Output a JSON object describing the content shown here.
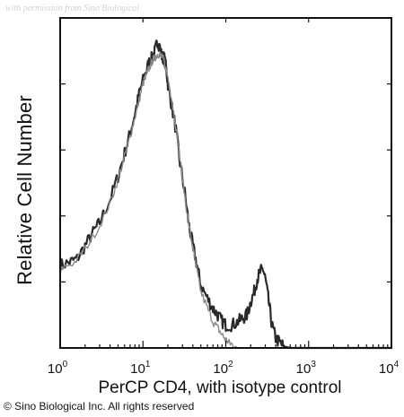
{
  "watermark": "with permission from Sino Biological",
  "copyright": "© Sino Biological Inc. All rights reserved",
  "colors": {
    "axis": "#111111",
    "histogram": "#2a2a2a",
    "control": "#8a8a8a",
    "background": "#ffffff"
  },
  "chart_data": {
    "type": "area",
    "title": "",
    "xlabel": "PerCP CD4, with isotype control",
    "ylabel": "Relative Cell Number",
    "xscale": "log",
    "xlim": [
      1,
      10000
    ],
    "ylim": [
      0,
      100
    ],
    "grid": false,
    "x_ticks": [
      {
        "base": "10",
        "exp": "0"
      },
      {
        "base": "10",
        "exp": "1"
      },
      {
        "base": "10",
        "exp": "2"
      },
      {
        "base": "10",
        "exp": "3"
      },
      {
        "base": "10",
        "exp": "4"
      }
    ],
    "series": [
      {
        "x": [
          1,
          1.3,
          1.6,
          2,
          2.5,
          3,
          4,
          5,
          6,
          7,
          8,
          9,
          10,
          11,
          12,
          13,
          14,
          15,
          16,
          17,
          18,
          19,
          20,
          22,
          25,
          28,
          32,
          36,
          40,
          45,
          50,
          60,
          70,
          80,
          90,
          100,
          120,
          140,
          160,
          180,
          200,
          220,
          240,
          260,
          280,
          300,
          330,
          360,
          400,
          450,
          500,
          600,
          800,
          1000,
          2000,
          5000,
          10000
        ],
        "values": [
          25,
          26,
          27,
          31,
          35,
          38,
          45,
          52,
          59,
          65,
          71,
          77,
          81,
          84,
          87,
          88,
          90,
          93,
          91,
          88,
          88,
          85,
          80,
          74,
          66,
          56,
          47,
          37,
          31,
          25,
          19,
          15,
          12,
          10,
          8,
          7,
          7,
          8,
          9,
          10,
          14,
          17,
          21,
          23,
          24,
          21,
          14,
          7,
          3,
          1.5,
          0.5,
          0,
          0,
          0,
          0,
          0,
          0
        ]
      },
      {
        "x": [
          1,
          1.5,
          2,
          3,
          4,
          5,
          6,
          7,
          8,
          9,
          10,
          11,
          12,
          13,
          14,
          15,
          16,
          17,
          18,
          20,
          22,
          25,
          28,
          32,
          36,
          40,
          45,
          50,
          60,
          70,
          80,
          90,
          100,
          110,
          120,
          140,
          160,
          200,
          300,
          1000,
          10000
        ],
        "values": [
          24,
          26,
          30,
          37,
          44,
          51,
          58,
          64,
          70,
          75,
          80,
          83,
          85,
          87,
          88,
          89,
          89,
          88,
          87,
          82,
          76,
          67,
          57,
          46,
          37,
          30,
          23,
          17,
          12,
          8,
          6,
          4,
          2.5,
          1.5,
          1,
          0,
          0,
          0,
          0,
          0,
          0
        ]
      }
    ]
  }
}
